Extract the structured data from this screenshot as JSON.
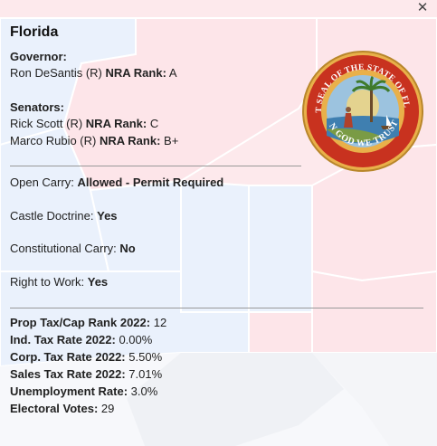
{
  "popup": {
    "close_icon": "close-icon",
    "state_name": "Florida",
    "governor": {
      "heading": "Governor:",
      "name": "Ron DeSantis (R)",
      "rank_label": "NRA Rank:",
      "rank_value": "A"
    },
    "senators": {
      "heading": "Senators:",
      "items": [
        {
          "name": "Rick Scott (R)",
          "rank_label": "NRA Rank:",
          "rank_value": "C"
        },
        {
          "name": "Marco Rubio (R)",
          "rank_label": "NRA Rank:",
          "rank_value": "B+"
        }
      ]
    },
    "seal": {
      "top_text": "GREAT SEAL OF THE STATE OF FLORIDA",
      "bottom_text": "IN GOD WE TRUST"
    },
    "laws": [
      {
        "label": "Open Carry:",
        "value": "Allowed - Permit Required"
      },
      {
        "label": "Castle Doctrine:",
        "value": "Yes"
      },
      {
        "label": "Constitutional Carry:",
        "value": "No"
      },
      {
        "label": "Right to Work:",
        "value": "Yes"
      }
    ],
    "stats": [
      {
        "label": "Prop Tax/Cap Rank 2022:",
        "value": "12"
      },
      {
        "label": "Ind. Tax Rate 2022:",
        "value": "0.00%"
      },
      {
        "label": "Corp. Tax Rate 2022:",
        "value": "5.50%"
      },
      {
        "label": "Sales Tax Rate 2022:",
        "value": "7.01%"
      },
      {
        "label": "Unemployment Rate:",
        "value": "3.0%"
      },
      {
        "label": "Electoral Votes:",
        "value": "29"
      }
    ]
  },
  "colors": {
    "map_red": "#fbdde2",
    "map_blue": "#e6eefc",
    "map_border": "#ffffff",
    "seal_gold": "#e9b04a",
    "seal_red": "#c8321f"
  }
}
